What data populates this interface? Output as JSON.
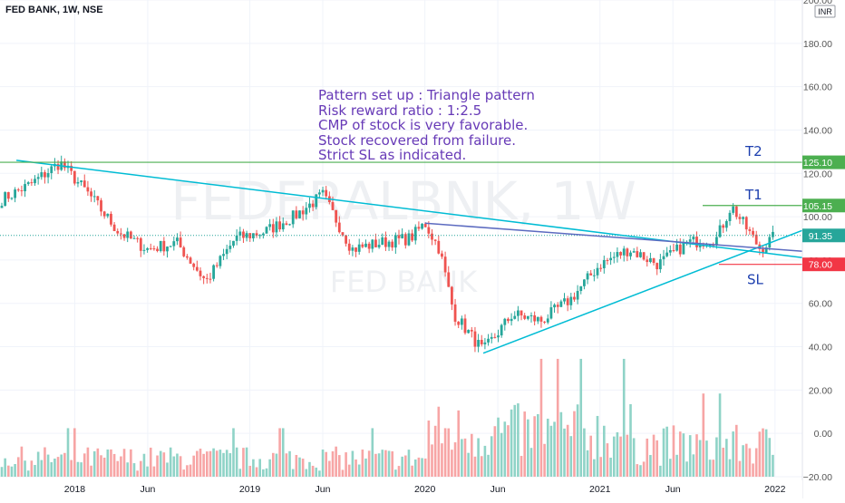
{
  "chart_data": {
    "type": "candlestick",
    "title": "FED BANK, 1W, NSE",
    "watermark": {
      "ticker": "FEDERALBNK, 1W",
      "name": "FED BANK"
    },
    "currency": "INR",
    "y_axis": {
      "range": [
        -20,
        200
      ],
      "ticks": [
        "200.00",
        "180.00",
        "160.00",
        "140.00",
        "120.00",
        "100.00",
        "80.00",
        "60.00",
        "40.00",
        "20.00",
        "0.00",
        "−20.00"
      ]
    },
    "x_axis": {
      "range": [
        "2017-08",
        "2022-03"
      ],
      "ticks": [
        {
          "label": "2018",
          "date": "2018-01"
        },
        {
          "label": "Jun",
          "date": "2018-06"
        },
        {
          "label": "2019",
          "date": "2019-01"
        },
        {
          "label": "Jun",
          "date": "2019-06"
        },
        {
          "label": "2020",
          "date": "2020-01"
        },
        {
          "label": "Jun",
          "date": "2020-06"
        },
        {
          "label": "2021",
          "date": "2021-01"
        },
        {
          "label": "Jun",
          "date": "2021-06"
        },
        {
          "label": "2022",
          "date": "2022-01"
        }
      ]
    },
    "price_path": [
      [
        "2017-08",
        108
      ],
      [
        "2017-10",
        115
      ],
      [
        "2017-12",
        125
      ],
      [
        "2018-02",
        110
      ],
      [
        "2018-04",
        93
      ],
      [
        "2018-06",
        85
      ],
      [
        "2018-08",
        88
      ],
      [
        "2018-10",
        70
      ],
      [
        "2018-12",
        90
      ],
      [
        "2019-02",
        93
      ],
      [
        "2019-04",
        100
      ],
      [
        "2019-06",
        110
      ],
      [
        "2019-08",
        85
      ],
      [
        "2019-10",
        88
      ],
      [
        "2019-12",
        90
      ],
      [
        "2020-01",
        97
      ],
      [
        "2020-02",
        85
      ],
      [
        "2020-03",
        55
      ],
      [
        "2020-05",
        38
      ],
      [
        "2020-07",
        55
      ],
      [
        "2020-09",
        52
      ],
      [
        "2020-11",
        62
      ],
      [
        "2021-01",
        78
      ],
      [
        "2021-03",
        85
      ],
      [
        "2021-05",
        78
      ],
      [
        "2021-07",
        88
      ],
      [
        "2021-09",
        90
      ],
      [
        "2021-10",
        105
      ],
      [
        "2021-12",
        85
      ],
      [
        "2022-01",
        91
      ]
    ],
    "volume_label": "Volume",
    "current_price": {
      "value": 91.35,
      "label": "91.35"
    },
    "levels": [
      {
        "name": "T2",
        "value": 125.1,
        "label": "125.10",
        "color": "#4caf50"
      },
      {
        "name": "T1",
        "value": 105.15,
        "label": "105.15",
        "color": "#4caf50"
      },
      {
        "name": "SL",
        "value": 78.0,
        "label": "78.00",
        "color": "#f23645"
      }
    ],
    "trendlines": [
      {
        "from": [
          "2017-09",
          126
        ],
        "to": [
          "2022-03",
          81
        ],
        "color": "#00bcd4"
      },
      {
        "from": [
          "2020-05",
          37
        ],
        "to": [
          "2022-03",
          94
        ],
        "color": "#00bcd4"
      },
      {
        "from": [
          "2020-01",
          97
        ],
        "to": [
          "2022-03",
          84
        ],
        "color": "#5c6bc0"
      }
    ],
    "annotation": [
      "Pattern set up : Triangle pattern",
      "Risk reward ratio : 1:2.5",
      "CMP of stock is very favorable.",
      "Stock recovered from failure.",
      "Strict SL as indicated."
    ],
    "colors": {
      "up": "#26a69a",
      "down": "#ef5350",
      "vol_up": "#8fd3c7",
      "vol_down": "#f7a5a5",
      "text": "#131722",
      "axis_text": "#555555",
      "grid": "#f0f3fa",
      "annotation": "#673ab7",
      "target": "#4caf50",
      "stop": "#f23645",
      "current": "#26a69a"
    }
  }
}
